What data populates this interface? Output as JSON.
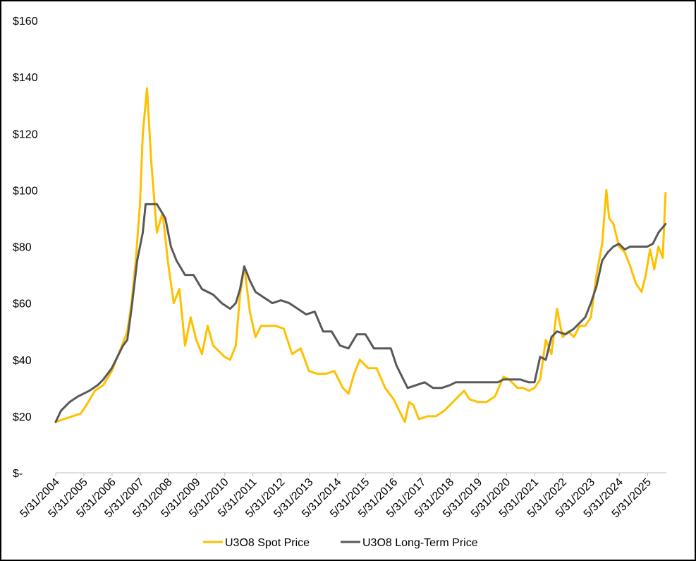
{
  "chart_data": {
    "type": "line",
    "title": "",
    "xlabel": "",
    "ylabel": "",
    "ylim": [
      0,
      160
    ],
    "y_ticks": [
      0,
      20,
      40,
      60,
      80,
      100,
      120,
      140,
      160
    ],
    "y_tick_labels": [
      "$-",
      "$20",
      "$40",
      "$60",
      "$80",
      "$100",
      "$120",
      "$140",
      "$160"
    ],
    "x_tick_labels": [
      "5/31/2004",
      "5/31/2005",
      "5/31/2006",
      "5/31/2007",
      "5/31/2008",
      "5/31/2009",
      "5/31/2010",
      "5/31/2011",
      "5/31/2012",
      "5/31/2013",
      "5/31/2014",
      "5/31/2015",
      "5/31/2016",
      "5/31/2017",
      "5/31/2018",
      "5/31/2019",
      "5/31/2020",
      "5/31/2021",
      "5/31/2022",
      "5/31/2023",
      "5/31/2024",
      "5/31/2025"
    ],
    "xlim": [
      2004.41,
      2026.08
    ],
    "grid": false,
    "legend_position": "bottom",
    "series": [
      {
        "name": "U3O8 Spot Price",
        "color": "#FFC000",
        "x": [
          2004.41,
          2004.7,
          2005.0,
          2005.3,
          2005.5,
          2005.8,
          2006.1,
          2006.4,
          2006.6,
          2006.8,
          2006.95,
          2007.1,
          2007.25,
          2007.4,
          2007.5,
          2007.65,
          2007.8,
          2008.0,
          2008.2,
          2008.4,
          2008.6,
          2008.8,
          2009.0,
          2009.2,
          2009.4,
          2009.6,
          2009.8,
          2010.0,
          2010.2,
          2010.4,
          2010.6,
          2010.8,
          2010.95,
          2011.1,
          2011.3,
          2011.5,
          2011.7,
          2011.9,
          2012.2,
          2012.5,
          2012.8,
          2013.1,
          2013.4,
          2013.7,
          2014.0,
          2014.3,
          2014.6,
          2014.8,
          2015.0,
          2015.2,
          2015.5,
          2015.8,
          2016.1,
          2016.4,
          2016.6,
          2016.8,
          2016.95,
          2017.1,
          2017.3,
          2017.6,
          2017.9,
          2018.2,
          2018.4,
          2018.6,
          2018.9,
          2019.1,
          2019.4,
          2019.7,
          2020.0,
          2020.3,
          2020.5,
          2020.8,
          2021.0,
          2021.2,
          2021.4,
          2021.6,
          2021.8,
          2022.0,
          2022.2,
          2022.4,
          2022.6,
          2022.8,
          2023.0,
          2023.2,
          2023.4,
          2023.6,
          2023.8,
          2023.95,
          2024.05,
          2024.2,
          2024.4,
          2024.6,
          2024.8,
          2025.0,
          2025.2,
          2025.35,
          2025.5,
          2025.65,
          2025.8,
          2025.95,
          2026.05
        ],
        "values": [
          18,
          19,
          20,
          21,
          24,
          29,
          31,
          36,
          41,
          46,
          50,
          60,
          75,
          95,
          120,
          136,
          110,
          85,
          92,
          74,
          60,
          65,
          45,
          55,
          47,
          42,
          52,
          45,
          43,
          41,
          40,
          45,
          63,
          73,
          57,
          48,
          52,
          52,
          52,
          51,
          42,
          44,
          36,
          35,
          35,
          36,
          30,
          28,
          35,
          40,
          37,
          37,
          30,
          26,
          22,
          18,
          25,
          24,
          19,
          20,
          20,
          22,
          24,
          26,
          29,
          26,
          25,
          25,
          27,
          34,
          33,
          30,
          30,
          29,
          30,
          33,
          47,
          42,
          58,
          48,
          50,
          48,
          52,
          52,
          55,
          70,
          81,
          100,
          90,
          88,
          80,
          78,
          73,
          67,
          64,
          70,
          79,
          72,
          80,
          76,
          99
        ]
      },
      {
        "name": "U3O8 Long-Term Price",
        "color": "#595959",
        "x": [
          2004.41,
          2004.6,
          2004.9,
          2005.2,
          2005.6,
          2005.9,
          2006.1,
          2006.4,
          2006.6,
          2006.8,
          2006.95,
          2007.1,
          2007.3,
          2007.5,
          2007.6,
          2007.8,
          2008.0,
          2008.3,
          2008.5,
          2008.7,
          2009.0,
          2009.3,
          2009.6,
          2009.8,
          2010.0,
          2010.3,
          2010.6,
          2010.8,
          2010.95,
          2011.1,
          2011.3,
          2011.5,
          2011.8,
          2012.1,
          2012.4,
          2012.7,
          2013.0,
          2013.3,
          2013.6,
          2013.9,
          2014.2,
          2014.5,
          2014.8,
          2015.1,
          2015.4,
          2015.7,
          2016.0,
          2016.3,
          2016.5,
          2016.7,
          2016.9,
          2017.2,
          2017.5,
          2017.8,
          2018.1,
          2018.4,
          2018.6,
          2018.9,
          2019.2,
          2019.5,
          2019.8,
          2020.1,
          2020.3,
          2020.6,
          2020.9,
          2021.2,
          2021.4,
          2021.6,
          2021.8,
          2022.0,
          2022.2,
          2022.5,
          2022.8,
          2023.0,
          2023.2,
          2023.4,
          2023.6,
          2023.8,
          2024.0,
          2024.2,
          2024.4,
          2024.6,
          2024.8,
          2025.0,
          2025.2,
          2025.4,
          2025.6,
          2025.8,
          2026.05
        ],
        "values": [
          18,
          22,
          25,
          27,
          29,
          31,
          33,
          37,
          41,
          45,
          47,
          58,
          75,
          85,
          95,
          95,
          95,
          90,
          80,
          75,
          70,
          70,
          65,
          64,
          63,
          60,
          58,
          60,
          65,
          73,
          68,
          64,
          62,
          60,
          61,
          60,
          58,
          56,
          57,
          50,
          50,
          45,
          44,
          49,
          49,
          44,
          44,
          44,
          38,
          34,
          30,
          31,
          32,
          30,
          30,
          31,
          32,
          32,
          32,
          32,
          32,
          32,
          33,
          33,
          33,
          32,
          32,
          41,
          40,
          48,
          50,
          49,
          51,
          53,
          55,
          60,
          66,
          75,
          78,
          80,
          81,
          79,
          80,
          80,
          80,
          80,
          81,
          85,
          88
        ]
      }
    ]
  }
}
